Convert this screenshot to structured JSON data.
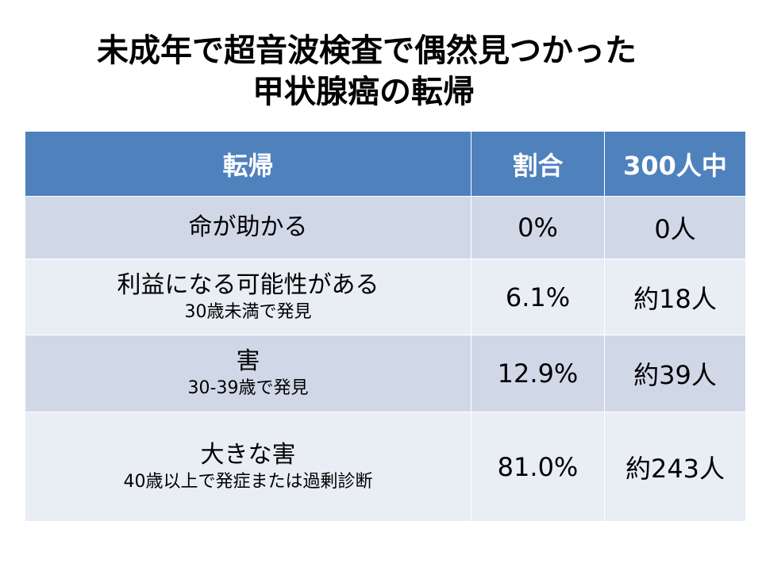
{
  "title": {
    "line1": "未成年で超音波検査で偶然見つかった",
    "line2": "甲状腺癌の転帰"
  },
  "table": {
    "headers": [
      "転帰",
      "割合",
      "300人中"
    ],
    "rows": [
      {
        "outcome": "命が助かる",
        "note": "",
        "ratio": "0%",
        "count": "0人"
      },
      {
        "outcome": "利益になる可能性がある",
        "note": "30歳未満で発見",
        "ratio": "6.1%",
        "count": "約18人"
      },
      {
        "outcome": "害",
        "note": "30-39歳で発見",
        "ratio": "12.9%",
        "count": "約39人"
      },
      {
        "outcome": "大きな害",
        "note": "40歳以上で発症または過剰診断",
        "ratio": "81.0%",
        "count": "約243人"
      }
    ]
  },
  "colors": {
    "header_bg": "#4f81bd",
    "row_band_dark": "#d0d8e8",
    "row_band_light": "#e9edf4"
  }
}
